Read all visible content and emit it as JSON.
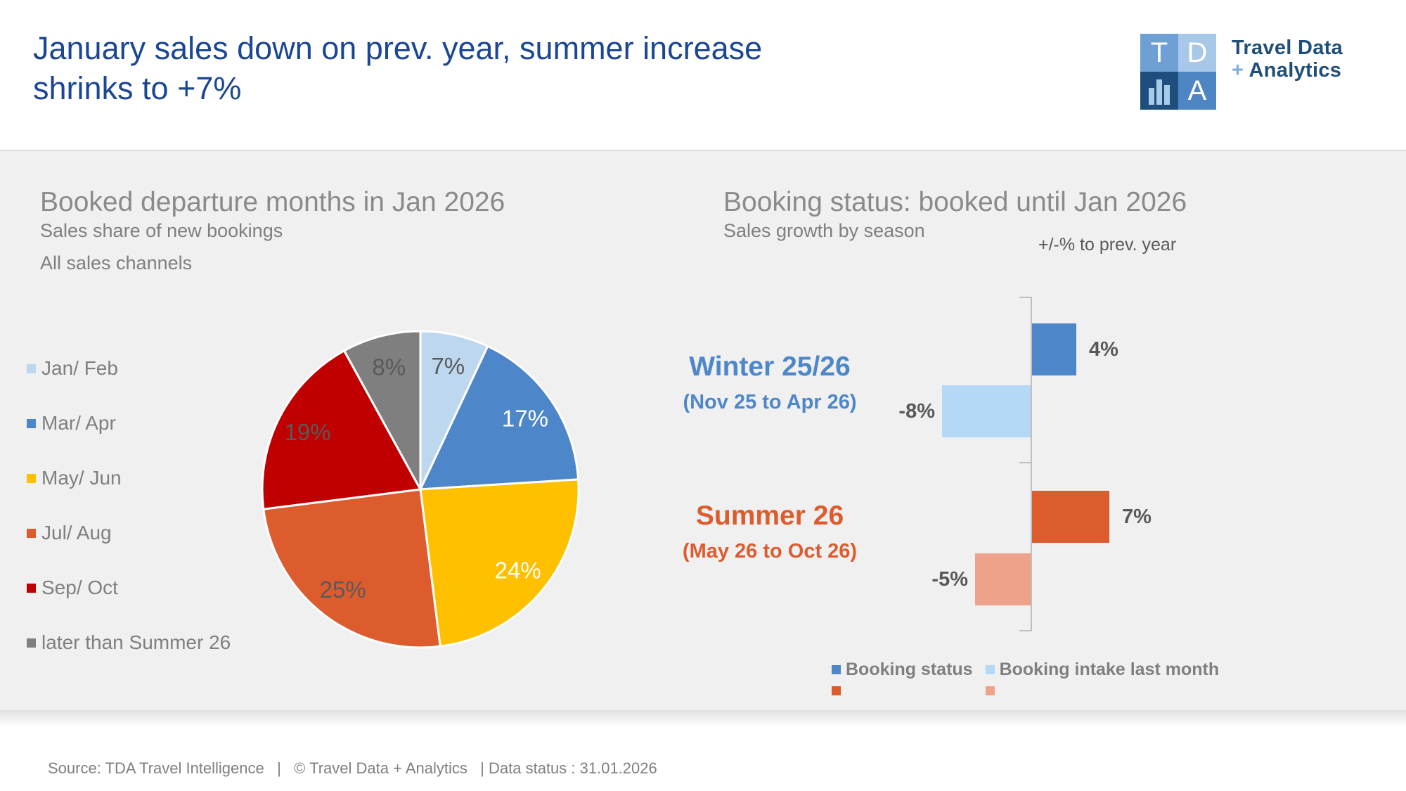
{
  "header": {
    "title_line1": "January sales down on prev. year, summer increase",
    "title_line2": "shrinks to +7%",
    "logo": {
      "squares": {
        "tl": "T",
        "tr": "D",
        "br": "A"
      },
      "text_line1": "Travel Data",
      "plus": "+",
      "text_line2": " Analytics"
    }
  },
  "colors": {
    "title_navy": "#1B4693",
    "band_gray": "#F0F0F1",
    "section_title_gray": "#8A8A8A",
    "subtitle_gray": "#7F7F7F",
    "value_label_gray": "#595959",
    "axis_gray": "#BFBFBF",
    "winter_blue": "#4E87C9",
    "summer_orange": "#DD5C2E"
  },
  "footer": {
    "text": "Source: TDA Travel Intelligence   |   © Travel Data + Analytics   | Data status : 31.01.2026"
  },
  "chart_data": [
    {
      "type": "pie",
      "title": "Booked departure months in Jan 2026",
      "subtitle1": "Sales share of new bookings",
      "subtitle2": "All sales channels",
      "unit": "%",
      "start_angle": "top",
      "direction": "clockwise",
      "slices": [
        {
          "label": "Jan/ Feb",
          "value": 7,
          "color": "#BDD7EE",
          "label_color": "#595959"
        },
        {
          "label": "Mar/ Apr",
          "value": 17,
          "color": "#4E87C9",
          "label_color": "#FFFFFF"
        },
        {
          "label": "May/ Jun",
          "value": 24,
          "color": "#FFC000",
          "label_color": "#FFFFFF"
        },
        {
          "label": "Jul/ Aug",
          "value": 25,
          "color": "#DD5C2E",
          "label_color": "#595959"
        },
        {
          "label": "Sep/ Oct",
          "value": 19,
          "color": "#C00000",
          "label_color": "#595959"
        },
        {
          "label": "later than Summer 26",
          "value": 8,
          "color": "#7F7F7F",
          "label_color": "#595959"
        }
      ]
    },
    {
      "type": "bar",
      "orientation": "horizontal",
      "title": "Booking status: booked until Jan 2026",
      "subtitle": "Sales growth by season",
      "axis_note": "+/-% to prev. year",
      "unit": "%",
      "groups": [
        {
          "name": "Winter 25/26",
          "range": "(Nov 25 to Apr 26)",
          "series": [
            {
              "name": "Booking status",
              "value": 4,
              "color": "#4E87C9"
            },
            {
              "name": "Booking intake last month",
              "value": -8,
              "color": "#B5D8F7"
            }
          ]
        },
        {
          "name": "Summer 26",
          "range": "(May 26 to Oct 26)",
          "series": [
            {
              "name": "Booking status",
              "value": 7,
              "color": "#DD5C2E"
            },
            {
              "name": "Booking intake last month",
              "value": -5,
              "color": "#EFA28A"
            }
          ]
        }
      ],
      "legend": [
        {
          "label": "Booking status",
          "colors": [
            "#4E87C9",
            "#DD5C2E"
          ]
        },
        {
          "label": "Booking intake last month",
          "colors": [
            "#B5D8F7",
            "#EFA28A"
          ]
        }
      ]
    }
  ]
}
